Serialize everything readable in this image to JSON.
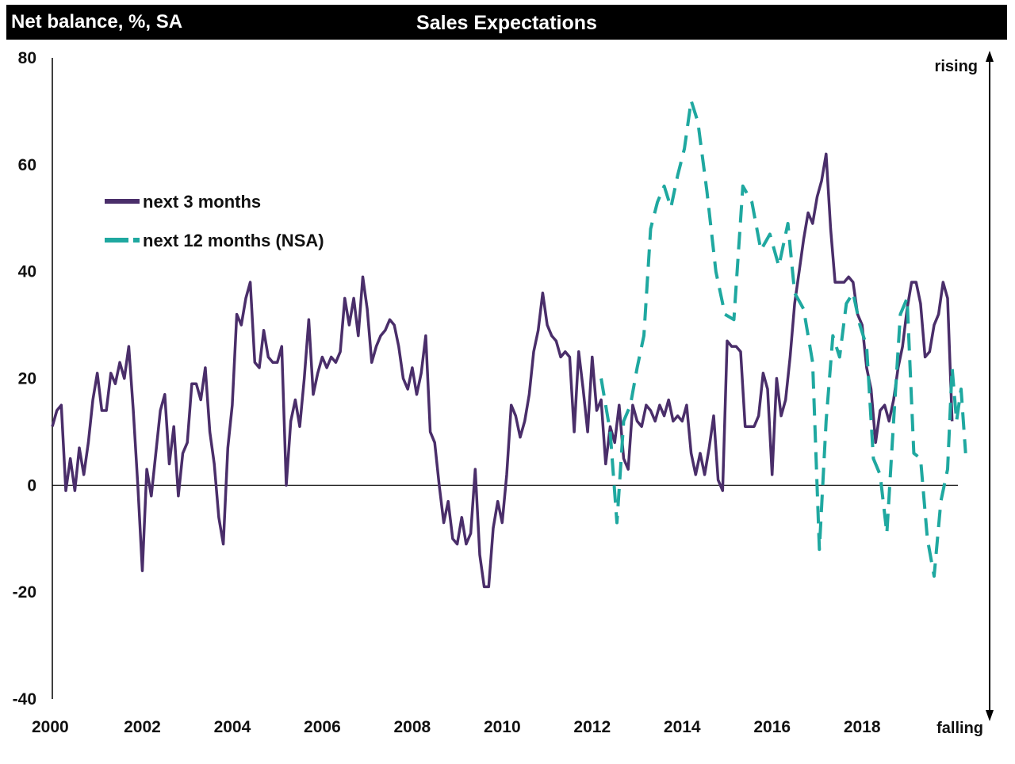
{
  "header": {
    "unit_label": "Net balance, %, SA",
    "title": "Sales Expectations"
  },
  "annotations": {
    "rising": "rising",
    "falling": "falling"
  },
  "colors": {
    "series_3m": "#4a2e6a",
    "series_12m": "#1fa8a0",
    "bar": "#000000"
  },
  "chart_data": {
    "type": "line",
    "title": "Sales Expectations",
    "ylabel": "Net balance, %, SA",
    "xlabel": "",
    "ylim": [
      -40,
      80
    ],
    "xlim": [
      2000,
      2020.1
    ],
    "yticks": [
      80,
      60,
      40,
      20,
      0,
      -20,
      -40
    ],
    "xticks": [
      2000,
      2002,
      2004,
      2006,
      2008,
      2010,
      2012,
      2014,
      2016,
      2018
    ],
    "grid": false,
    "legend_position": "upper-left",
    "series": [
      {
        "name": "next 3 months",
        "style": "solid",
        "points": [
          [
            2000.0,
            11
          ],
          [
            2000.1,
            14
          ],
          [
            2000.2,
            15
          ],
          [
            2000.3,
            -1
          ],
          [
            2000.4,
            5
          ],
          [
            2000.5,
            -1
          ],
          [
            2000.6,
            7
          ],
          [
            2000.7,
            2
          ],
          [
            2000.8,
            8
          ],
          [
            2000.9,
            16
          ],
          [
            2001.0,
            21
          ],
          [
            2001.1,
            14
          ],
          [
            2001.2,
            14
          ],
          [
            2001.3,
            21
          ],
          [
            2001.4,
            19
          ],
          [
            2001.5,
            23
          ],
          [
            2001.6,
            20
          ],
          [
            2001.7,
            26
          ],
          [
            2001.8,
            14
          ],
          [
            2001.9,
            0
          ],
          [
            2002.0,
            -16
          ],
          [
            2002.1,
            3
          ],
          [
            2002.2,
            -2
          ],
          [
            2002.3,
            6
          ],
          [
            2002.4,
            14
          ],
          [
            2002.5,
            17
          ],
          [
            2002.6,
            4
          ],
          [
            2002.7,
            11
          ],
          [
            2002.8,
            -2
          ],
          [
            2002.9,
            6
          ],
          [
            2003.0,
            8
          ],
          [
            2003.1,
            19
          ],
          [
            2003.2,
            19
          ],
          [
            2003.3,
            16
          ],
          [
            2003.4,
            22
          ],
          [
            2003.5,
            10
          ],
          [
            2003.6,
            4
          ],
          [
            2003.7,
            -6
          ],
          [
            2003.8,
            -11
          ],
          [
            2003.9,
            7
          ],
          [
            2004.0,
            15
          ],
          [
            2004.1,
            32
          ],
          [
            2004.2,
            30
          ],
          [
            2004.3,
            35
          ],
          [
            2004.4,
            38
          ],
          [
            2004.5,
            23
          ],
          [
            2004.6,
            22
          ],
          [
            2004.7,
            29
          ],
          [
            2004.8,
            24
          ],
          [
            2004.9,
            23
          ],
          [
            2005.0,
            23
          ],
          [
            2005.1,
            26
          ],
          [
            2005.2,
            0
          ],
          [
            2005.3,
            12
          ],
          [
            2005.4,
            16
          ],
          [
            2005.5,
            11
          ],
          [
            2005.6,
            20
          ],
          [
            2005.7,
            31
          ],
          [
            2005.8,
            17
          ],
          [
            2005.9,
            21
          ],
          [
            2006.0,
            24
          ],
          [
            2006.1,
            22
          ],
          [
            2006.2,
            24
          ],
          [
            2006.3,
            23
          ],
          [
            2006.4,
            25
          ],
          [
            2006.5,
            35
          ],
          [
            2006.6,
            30
          ],
          [
            2006.7,
            35
          ],
          [
            2006.8,
            28
          ],
          [
            2006.9,
            39
          ],
          [
            2007.0,
            33
          ],
          [
            2007.1,
            23
          ],
          [
            2007.2,
            26
          ],
          [
            2007.3,
            28
          ],
          [
            2007.4,
            29
          ],
          [
            2007.5,
            31
          ],
          [
            2007.6,
            30
          ],
          [
            2007.7,
            26
          ],
          [
            2007.8,
            20
          ],
          [
            2007.9,
            18
          ],
          [
            2008.0,
            22
          ],
          [
            2008.1,
            17
          ],
          [
            2008.2,
            21
          ],
          [
            2008.3,
            28
          ],
          [
            2008.4,
            10
          ],
          [
            2008.5,
            8
          ],
          [
            2008.6,
            0
          ],
          [
            2008.7,
            -7
          ],
          [
            2008.8,
            -3
          ],
          [
            2008.9,
            -10
          ],
          [
            2009.0,
            -11
          ],
          [
            2009.1,
            -6
          ],
          [
            2009.2,
            -11
          ],
          [
            2009.3,
            -9
          ],
          [
            2009.4,
            3
          ],
          [
            2009.5,
            -13
          ],
          [
            2009.6,
            -19
          ],
          [
            2009.7,
            -19
          ],
          [
            2009.8,
            -8
          ],
          [
            2009.9,
            -3
          ],
          [
            2010.0,
            -7
          ],
          [
            2010.1,
            2
          ],
          [
            2010.2,
            15
          ],
          [
            2010.3,
            13
          ],
          [
            2010.4,
            9
          ],
          [
            2010.5,
            12
          ],
          [
            2010.6,
            17
          ],
          [
            2010.7,
            25
          ],
          [
            2010.8,
            29
          ],
          [
            2010.9,
            36
          ],
          [
            2011.0,
            30
          ],
          [
            2011.1,
            28
          ],
          [
            2011.2,
            27
          ],
          [
            2011.3,
            24
          ],
          [
            2011.4,
            25
          ],
          [
            2011.5,
            24
          ],
          [
            2011.6,
            10
          ],
          [
            2011.7,
            25
          ],
          [
            2011.8,
            18
          ],
          [
            2011.9,
            10
          ],
          [
            2012.0,
            24
          ],
          [
            2012.1,
            14
          ],
          [
            2012.2,
            16
          ],
          [
            2012.3,
            4
          ],
          [
            2012.4,
            11
          ],
          [
            2012.5,
            8
          ],
          [
            2012.6,
            15
          ],
          [
            2012.7,
            5
          ],
          [
            2012.8,
            3
          ],
          [
            2012.9,
            15
          ],
          [
            2013.0,
            12
          ],
          [
            2013.1,
            11
          ],
          [
            2013.2,
            15
          ],
          [
            2013.3,
            14
          ],
          [
            2013.4,
            12
          ],
          [
            2013.5,
            15
          ],
          [
            2013.6,
            13
          ],
          [
            2013.7,
            16
          ],
          [
            2013.8,
            12
          ],
          [
            2013.9,
            13
          ],
          [
            2014.0,
            12
          ],
          [
            2014.1,
            15
          ],
          [
            2014.2,
            6
          ],
          [
            2014.3,
            2
          ],
          [
            2014.4,
            6
          ],
          [
            2014.5,
            2
          ],
          [
            2014.6,
            7
          ],
          [
            2014.7,
            13
          ],
          [
            2014.8,
            1
          ],
          [
            2014.9,
            -1
          ],
          [
            2015.0,
            27
          ],
          [
            2015.1,
            26
          ],
          [
            2015.2,
            26
          ],
          [
            2015.3,
            25
          ],
          [
            2015.4,
            11
          ],
          [
            2015.5,
            11
          ],
          [
            2015.6,
            11
          ],
          [
            2015.7,
            13
          ],
          [
            2015.8,
            21
          ],
          [
            2015.9,
            18
          ],
          [
            2016.0,
            2
          ],
          [
            2016.1,
            20
          ],
          [
            2016.2,
            13
          ],
          [
            2016.3,
            16
          ],
          [
            2016.4,
            24
          ],
          [
            2016.5,
            34
          ],
          [
            2016.6,
            40
          ],
          [
            2016.7,
            46
          ],
          [
            2016.8,
            51
          ],
          [
            2016.9,
            49
          ],
          [
            2017.0,
            54
          ],
          [
            2017.1,
            57
          ],
          [
            2017.2,
            62
          ],
          [
            2017.3,
            48
          ],
          [
            2017.4,
            38
          ],
          [
            2017.5,
            38
          ],
          [
            2017.6,
            38
          ],
          [
            2017.7,
            39
          ],
          [
            2017.8,
            38
          ],
          [
            2017.9,
            32
          ],
          [
            2018.0,
            30
          ],
          [
            2018.1,
            22
          ],
          [
            2018.2,
            18
          ],
          [
            2018.3,
            8
          ],
          [
            2018.4,
            14
          ],
          [
            2018.5,
            15
          ],
          [
            2018.6,
            12
          ],
          [
            2018.7,
            16
          ],
          [
            2018.8,
            22
          ],
          [
            2018.9,
            26
          ],
          [
            2019.0,
            33
          ],
          [
            2019.1,
            38
          ],
          [
            2019.2,
            38
          ],
          [
            2019.3,
            34
          ],
          [
            2019.4,
            24
          ],
          [
            2019.5,
            25
          ],
          [
            2019.6,
            30
          ],
          [
            2019.7,
            32
          ],
          [
            2019.8,
            38
          ],
          [
            2019.9,
            35
          ],
          [
            2020.0,
            12
          ]
        ]
      },
      {
        "name": "next 12 months (NSA)",
        "style": "dashed",
        "points": [
          [
            2012.2,
            20
          ],
          [
            2012.4,
            10
          ],
          [
            2012.55,
            -7
          ],
          [
            2012.7,
            12
          ],
          [
            2012.85,
            15
          ],
          [
            2013.0,
            22
          ],
          [
            2013.15,
            28
          ],
          [
            2013.3,
            48
          ],
          [
            2013.45,
            53
          ],
          [
            2013.6,
            56
          ],
          [
            2013.75,
            52
          ],
          [
            2013.9,
            58
          ],
          [
            2014.05,
            63
          ],
          [
            2014.2,
            72
          ],
          [
            2014.35,
            68
          ],
          [
            2014.55,
            55
          ],
          [
            2014.75,
            40
          ],
          [
            2014.95,
            32
          ],
          [
            2015.15,
            31
          ],
          [
            2015.35,
            56
          ],
          [
            2015.55,
            53
          ],
          [
            2015.75,
            44
          ],
          [
            2015.95,
            47
          ],
          [
            2016.15,
            41
          ],
          [
            2016.35,
            49
          ],
          [
            2016.5,
            36
          ],
          [
            2016.7,
            33
          ],
          [
            2016.9,
            23
          ],
          [
            2017.05,
            -12
          ],
          [
            2017.2,
            12
          ],
          [
            2017.35,
            28
          ],
          [
            2017.5,
            24
          ],
          [
            2017.65,
            34
          ],
          [
            2017.8,
            36
          ],
          [
            2017.95,
            30
          ],
          [
            2018.1,
            26
          ],
          [
            2018.25,
            5
          ],
          [
            2018.4,
            2
          ],
          [
            2018.55,
            -9
          ],
          [
            2018.7,
            12
          ],
          [
            2018.85,
            32
          ],
          [
            2019.0,
            35
          ],
          [
            2019.15,
            6
          ],
          [
            2019.3,
            5
          ],
          [
            2019.45,
            -10
          ],
          [
            2019.6,
            -17
          ],
          [
            2019.75,
            -3
          ],
          [
            2019.9,
            3
          ],
          [
            2020.0,
            22
          ],
          [
            2020.1,
            12
          ],
          [
            2020.2,
            18
          ],
          [
            2020.3,
            6
          ]
        ]
      }
    ]
  }
}
